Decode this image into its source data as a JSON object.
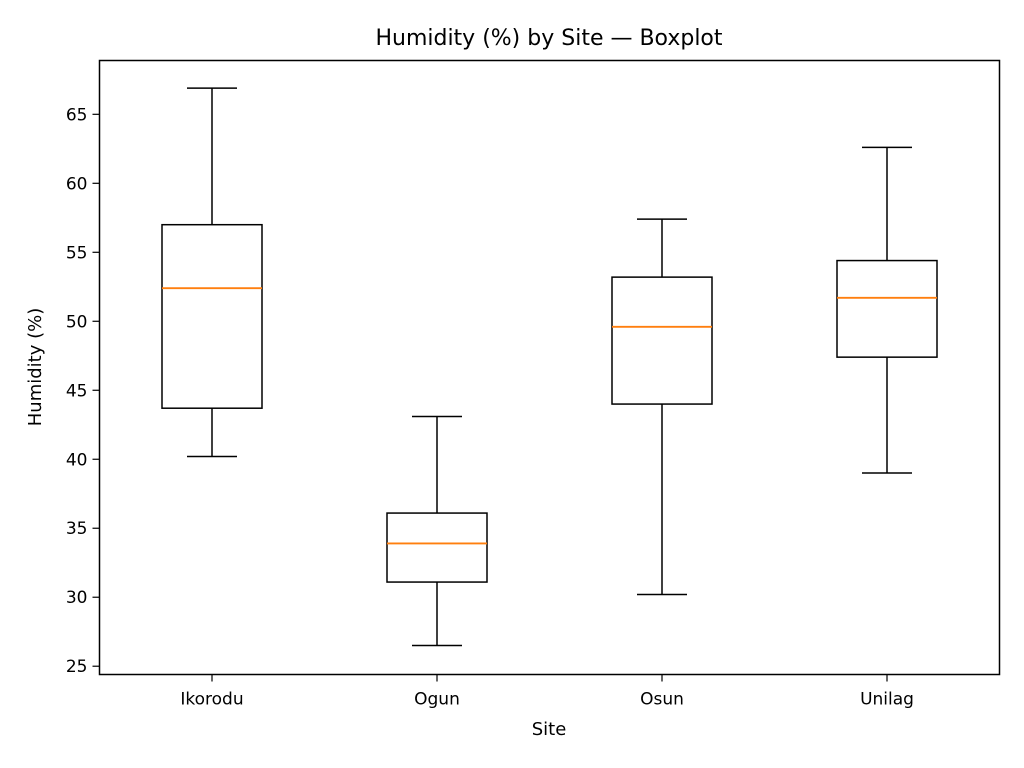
{
  "chart_data": {
    "type": "boxplot",
    "title": "Humidity (%) by Site — Boxplot",
    "xlabel": "Site",
    "ylabel": "Humidity (%)",
    "ylim": [
      24.4,
      68.9
    ],
    "yticks": [
      25,
      30,
      35,
      40,
      45,
      50,
      55,
      60,
      65
    ],
    "grid": false,
    "categories": [
      "Ikorodu",
      "Ogun",
      "Osun",
      "Unilag"
    ],
    "boxes": [
      {
        "category": "Ikorodu",
        "whisker_low": 40.2,
        "q1": 43.7,
        "median": 52.4,
        "q3": 57.0,
        "whisker_high": 66.9
      },
      {
        "category": "Ogun",
        "whisker_low": 26.5,
        "q1": 31.1,
        "median": 33.9,
        "q3": 36.1,
        "whisker_high": 43.1
      },
      {
        "category": "Osun",
        "whisker_low": 30.2,
        "q1": 44.0,
        "median": 49.6,
        "q3": 53.2,
        "whisker_high": 57.4
      },
      {
        "category": "Unilag",
        "whisker_low": 39.0,
        "q1": 47.4,
        "median": 51.7,
        "q3": 54.4,
        "whisker_high": 62.6
      }
    ],
    "colors": {
      "box": "#000000",
      "median": "#ff7f0e",
      "axes": "#000000",
      "background": "#ffffff"
    }
  }
}
